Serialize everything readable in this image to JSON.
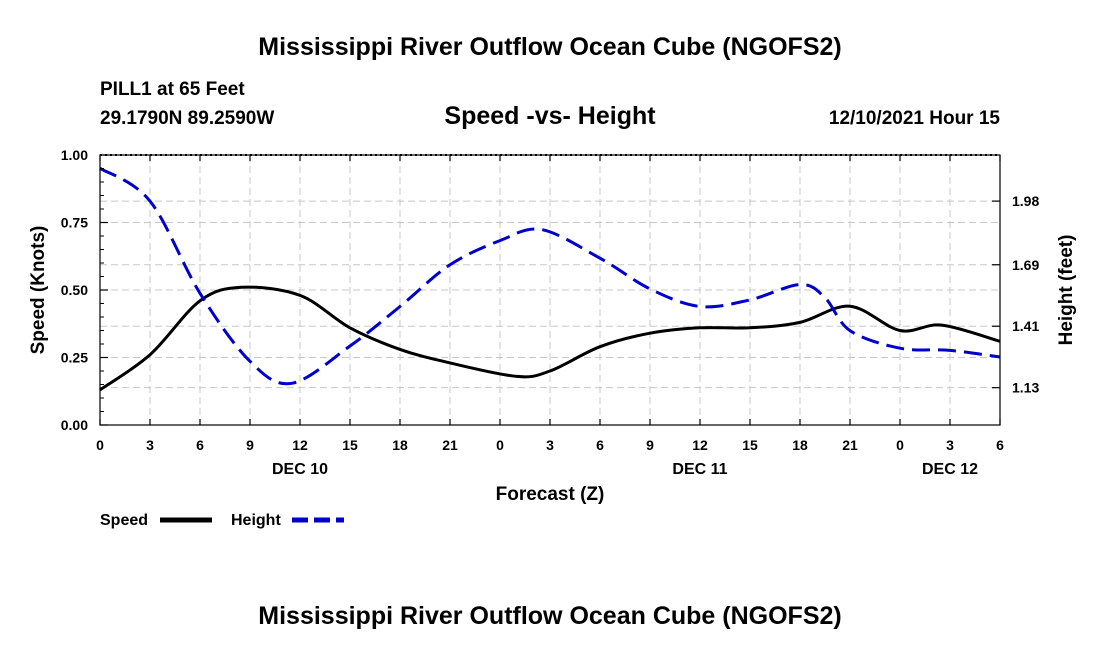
{
  "title": "Mississippi River Outflow Ocean Cube (NGOFS2)",
  "footer_title": "Mississippi River Outflow Ocean Cube (NGOFS2)",
  "station": {
    "name": "PILL1 at 65 Feet",
    "coords": "29.1790N  89.2590W"
  },
  "datetime": "12/10/2021 Hour 15",
  "chart_data": {
    "type": "line",
    "title": "Speed -vs- Height",
    "xlabel": "Forecast (Z)",
    "ylabel_left": "Speed (Knots)",
    "ylabel_right": "Height (feet)",
    "x_range": [
      0,
      54
    ],
    "x_tick_values": [
      0,
      3,
      6,
      9,
      12,
      15,
      18,
      21,
      24,
      27,
      30,
      33,
      36,
      39,
      42,
      45,
      48,
      51,
      54
    ],
    "x_tick_labels": [
      "0",
      "3",
      "6",
      "9",
      "12",
      "15",
      "18",
      "21",
      "0",
      "3",
      "6",
      "9",
      "12",
      "15",
      "18",
      "21",
      "0",
      "3",
      "6"
    ],
    "day_labels": [
      {
        "label": "DEC 10",
        "x": 12
      },
      {
        "label": "DEC 11",
        "x": 36
      },
      {
        "label": "DEC 12",
        "x": 51
      }
    ],
    "y_left": {
      "range": [
        0,
        1
      ],
      "ticks": [
        0,
        0.25,
        0.5,
        0.75,
        1.0
      ],
      "tick_labels": [
        "0.00",
        "0.25",
        "0.50",
        "0.75",
        "1.00"
      ]
    },
    "y_right": {
      "range": [
        0.96,
        2.19
      ],
      "ticks": [
        1.13,
        1.41,
        1.69,
        1.98
      ],
      "tick_labels": [
        "1.13",
        "1.41",
        "1.69",
        "1.98"
      ]
    },
    "series": [
      {
        "name": "Speed",
        "axis": "left",
        "color": "#000000",
        "style": "solid",
        "x": [
          0,
          3,
          6,
          8.5,
          12,
          15,
          18,
          21,
          25,
          27,
          30,
          33,
          36,
          39,
          42,
          45,
          48,
          50.5,
          54
        ],
        "values": [
          0.13,
          0.26,
          0.46,
          0.51,
          0.48,
          0.36,
          0.28,
          0.23,
          0.18,
          0.2,
          0.29,
          0.34,
          0.36,
          0.36,
          0.38,
          0.44,
          0.35,
          0.37,
          0.31
        ]
      },
      {
        "name": "Height",
        "axis": "right",
        "color": "#0000cc",
        "style": "dashed",
        "x": [
          0,
          3,
          6,
          9,
          11.5,
          15,
          18,
          21,
          24,
          26.5,
          30,
          33,
          36,
          39,
          42,
          43.5,
          45,
          48,
          51,
          54
        ],
        "values": [
          2.13,
          1.98,
          1.56,
          1.25,
          1.15,
          1.32,
          1.5,
          1.69,
          1.8,
          1.85,
          1.72,
          1.58,
          1.5,
          1.53,
          1.6,
          1.54,
          1.39,
          1.31,
          1.3,
          1.27
        ]
      }
    ]
  },
  "legend": [
    {
      "label": "Speed",
      "color": "#000000",
      "style": "solid"
    },
    {
      "label": "Height",
      "color": "#0000cc",
      "style": "dashed"
    }
  ]
}
